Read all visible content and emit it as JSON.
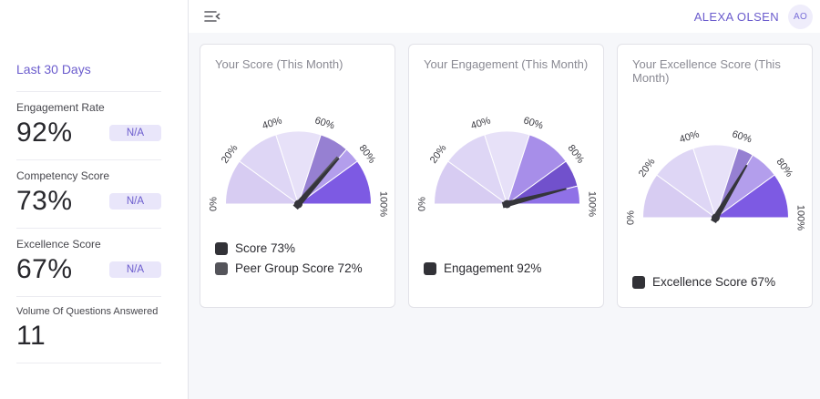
{
  "colors": {
    "accent": "#6b5ccd",
    "accent_soft_bg": "#e9e6fa",
    "main_bg": "#f6f7fa",
    "card_border": "#e2e2e8",
    "needle": "#3a3a40"
  },
  "topbar": {
    "menu_icon": "menu-fold-icon",
    "user_name": "ALEXA OLSEN",
    "user_initials": "AO"
  },
  "sidebar": {
    "period_label": "Last 30 Days",
    "stats": [
      {
        "label": "Engagement Rate",
        "value": "92%",
        "badge": "N/A"
      },
      {
        "label": "Competency Score",
        "value": "73%",
        "badge": "N/A"
      },
      {
        "label": "Excellence Score",
        "value": "67%",
        "badge": "N/A"
      },
      {
        "label": "Volume Of Questions Answered",
        "value": "11",
        "badge": ""
      }
    ]
  },
  "chart_data": [
    {
      "type": "gauge",
      "title": "Your Score (This Month)",
      "min": 0,
      "max": 100,
      "angle_span": 180,
      "ticks": [
        0,
        20,
        40,
        60,
        80,
        100
      ],
      "tick_suffix": "%",
      "bands": [
        {
          "to": 20,
          "color": "#d7ccf2"
        },
        {
          "to": 40,
          "color": "#ded6f5"
        },
        {
          "to": 60,
          "color": "#e7e1f8"
        },
        {
          "to": 80,
          "color": "#a78ee9"
        },
        {
          "to": 100,
          "color": "#7d5ae3"
        }
      ],
      "series": [
        {
          "name": "Score",
          "value": 73,
          "color": "#35353b"
        },
        {
          "name": "Peer Group Score",
          "value": 72,
          "color": "#55555b"
        }
      ],
      "legend": [
        {
          "label": "Score 73%",
          "color": "#323237"
        },
        {
          "label": "Peer Group Score 72%",
          "color": "#54545a"
        }
      ]
    },
    {
      "type": "gauge",
      "title": "Your Engagement (This Month)",
      "min": 0,
      "max": 100,
      "angle_span": 180,
      "ticks": [
        0,
        20,
        40,
        60,
        80,
        100
      ],
      "tick_suffix": "%",
      "bands": [
        {
          "to": 20,
          "color": "#d7ccf2"
        },
        {
          "to": 40,
          "color": "#ded6f5"
        },
        {
          "to": 60,
          "color": "#e7e1f8"
        },
        {
          "to": 80,
          "color": "#a78ee9"
        },
        {
          "to": 100,
          "color": "#7d5ae3"
        }
      ],
      "series": [
        {
          "name": "Engagement",
          "value": 92,
          "color": "#35353b"
        }
      ],
      "legend": [
        {
          "label": "Engagement 92%",
          "color": "#323237"
        }
      ]
    },
    {
      "type": "gauge",
      "title": "Your Excellence Score (This Month)",
      "min": 0,
      "max": 100,
      "angle_span": 180,
      "ticks": [
        0,
        20,
        40,
        60,
        80,
        100
      ],
      "tick_suffix": "%",
      "bands": [
        {
          "to": 20,
          "color": "#d7ccf2"
        },
        {
          "to": 40,
          "color": "#ded6f5"
        },
        {
          "to": 60,
          "color": "#e7e1f8"
        },
        {
          "to": 80,
          "color": "#a78ee9"
        },
        {
          "to": 100,
          "color": "#7d5ae3"
        }
      ],
      "series": [
        {
          "name": "Excellence Score",
          "value": 67,
          "color": "#35353b"
        }
      ],
      "legend": [
        {
          "label": "Excellence Score 67%",
          "color": "#323237"
        }
      ]
    }
  ]
}
